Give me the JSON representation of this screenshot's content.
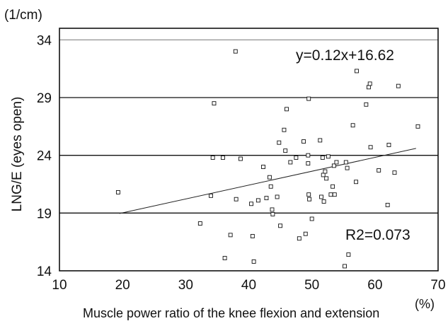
{
  "chart_data": {
    "type": "scatter",
    "xlabel": "Muscle power ratio of the knee flexion and extension",
    "xunit": "(%)",
    "ylabel": "LNG/E (eyes open)",
    "yunit": "(1/cm)",
    "xlim": [
      10,
      70
    ],
    "ylim": [
      14,
      35
    ],
    "xticks": [
      10,
      20,
      30,
      40,
      50,
      60,
      70
    ],
    "yticks": [
      14,
      19,
      24,
      29,
      34
    ],
    "grid": "horizontal",
    "annotations": {
      "equation": "y=0.12x+16.62",
      "r2": "R2=0.073"
    },
    "trendline": {
      "slope": 0.12,
      "intercept": 16.62,
      "x_start": 19.5,
      "x_end": 66.5
    },
    "points": [
      [
        19.3,
        20.8
      ],
      [
        32.3,
        18.1
      ],
      [
        34.0,
        20.5
      ],
      [
        34.3,
        23.8
      ],
      [
        34.5,
        28.5
      ],
      [
        35.9,
        23.8
      ],
      [
        36.2,
        15.1
      ],
      [
        37.1,
        17.1
      ],
      [
        37.9,
        33.0
      ],
      [
        38.0,
        20.2
      ],
      [
        38.7,
        23.7
      ],
      [
        40.4,
        19.8
      ],
      [
        40.6,
        17.0
      ],
      [
        40.8,
        14.8
      ],
      [
        41.5,
        20.1
      ],
      [
        42.3,
        23.0
      ],
      [
        42.8,
        20.3
      ],
      [
        43.3,
        22.1
      ],
      [
        43.5,
        21.3
      ],
      [
        43.7,
        19.3
      ],
      [
        43.8,
        18.9
      ],
      [
        44.5,
        20.4
      ],
      [
        44.8,
        25.1
      ],
      [
        45.0,
        17.9
      ],
      [
        45.6,
        26.2
      ],
      [
        45.8,
        24.4
      ],
      [
        46.0,
        28.0
      ],
      [
        46.6,
        23.4
      ],
      [
        47.5,
        23.8
      ],
      [
        48.0,
        16.8
      ],
      [
        48.7,
        25.2
      ],
      [
        49.0,
        17.2
      ],
      [
        49.4,
        23.3
      ],
      [
        49.4,
        24.0
      ],
      [
        49.5,
        28.9
      ],
      [
        49.5,
        20.6
      ],
      [
        49.6,
        20.2
      ],
      [
        50.0,
        18.5
      ],
      [
        51.3,
        25.3
      ],
      [
        51.5,
        20.4
      ],
      [
        51.7,
        23.8
      ],
      [
        51.8,
        22.3
      ],
      [
        51.9,
        20.0
      ],
      [
        52.1,
        22.6
      ],
      [
        52.3,
        22.0
      ],
      [
        52.6,
        23.9
      ],
      [
        53.0,
        20.6
      ],
      [
        53.3,
        21.3
      ],
      [
        53.5,
        23.1
      ],
      [
        53.6,
        20.6
      ],
      [
        53.9,
        23.4
      ],
      [
        55.2,
        14.4
      ],
      [
        55.4,
        23.4
      ],
      [
        55.6,
        22.9
      ],
      [
        55.8,
        15.4
      ],
      [
        56.5,
        26.6
      ],
      [
        57.0,
        21.7
      ],
      [
        57.1,
        31.3
      ],
      [
        58.6,
        28.4
      ],
      [
        59.0,
        29.9
      ],
      [
        59.2,
        30.2
      ],
      [
        59.3,
        24.7
      ],
      [
        60.6,
        22.7
      ],
      [
        62.0,
        19.7
      ],
      [
        62.2,
        24.9
      ],
      [
        63.1,
        22.5
      ],
      [
        63.7,
        30.0
      ],
      [
        66.8,
        26.5
      ]
    ]
  }
}
